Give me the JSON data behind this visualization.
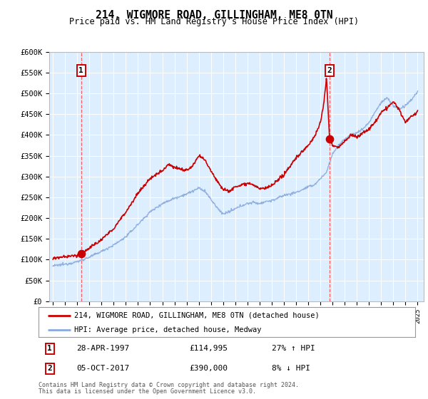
{
  "title": "214, WIGMORE ROAD, GILLINGHAM, ME8 0TN",
  "subtitle": "Price paid vs. HM Land Registry's House Price Index (HPI)",
  "legend_line1": "214, WIGMORE ROAD, GILLINGHAM, ME8 0TN (detached house)",
  "legend_line2": "HPI: Average price, detached house, Medway",
  "sale1_date": "28-APR-1997",
  "sale1_price": "£114,995",
  "sale1_hpi": "27% ↑ HPI",
  "sale1_year": 1997.32,
  "sale1_value": 114995,
  "sale2_date": "05-OCT-2017",
  "sale2_price": "£390,000",
  "sale2_hpi": "8% ↓ HPI",
  "sale2_year": 2017.76,
  "sale2_value": 390000,
  "footnote1": "Contains HM Land Registry data © Crown copyright and database right 2024.",
  "footnote2": "This data is licensed under the Open Government Licence v3.0.",
  "red_color": "#cc0000",
  "blue_color": "#88aadd",
  "plot_bg": "#ddeeff",
  "grid_color": "#ffffff",
  "dashed_color": "#ff4444",
  "ylim": [
    0,
    600000
  ],
  "xlim_start": 1994.7,
  "xlim_end": 2025.5,
  "ytick_labels": [
    "£0",
    "£50K",
    "£100K",
    "£150K",
    "£200K",
    "£250K",
    "£300K",
    "£350K",
    "£400K",
    "£450K",
    "£500K",
    "£550K",
    "£600K"
  ],
  "ytick_values": [
    0,
    50000,
    100000,
    150000,
    200000,
    250000,
    300000,
    350000,
    400000,
    450000,
    500000,
    550000,
    600000
  ]
}
